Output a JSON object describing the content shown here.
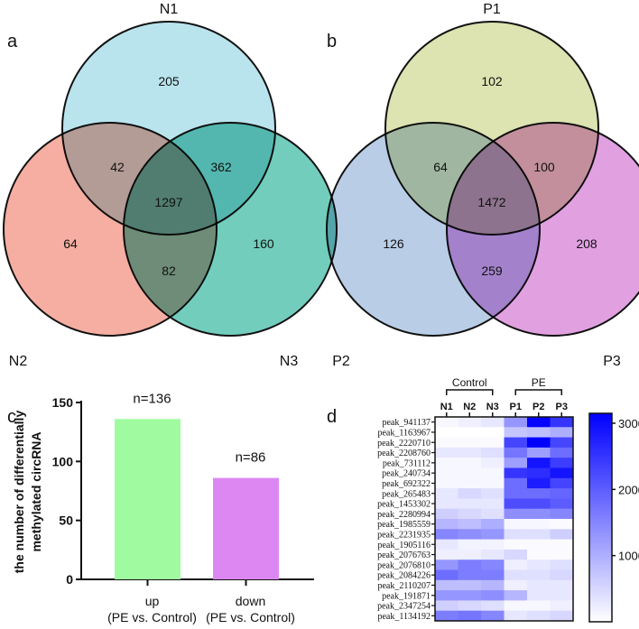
{
  "panel_labels": [
    "a",
    "b",
    "c",
    "d"
  ],
  "chart_data": [
    {
      "type": "venn",
      "panel": "a",
      "sets": [
        {
          "name": "N1",
          "color": "#a9dde9"
        },
        {
          "name": "N2",
          "color": "#f29a8a"
        },
        {
          "name": "N3",
          "color": "#4fc1ad"
        }
      ],
      "regions": {
        "N1_only": "205",
        "N2_only": "64",
        "N3_only": "160",
        "N1_N2": "42",
        "N1_N3": "362",
        "N2_N3": "82",
        "all": "1297"
      }
    },
    {
      "type": "venn",
      "panel": "b",
      "sets": [
        {
          "name": "P1",
          "color": "#d5dc9d"
        },
        {
          "name": "P2",
          "color": "#a8c0e0"
        },
        {
          "name": "P3",
          "color": "#d98ad9"
        }
      ],
      "regions": {
        "P1_only": "102",
        "P2_only": "126",
        "P3_only": "208",
        "P1_P2": "64",
        "P1_P3": "100",
        "P2_P3": "259",
        "all": "1472"
      }
    },
    {
      "type": "bar",
      "panel": "c",
      "ylabel": [
        "the number of differentially",
        "methylated circRNA"
      ],
      "ylim": [
        0,
        150
      ],
      "yticks": [
        "0",
        "50",
        "100",
        "150"
      ],
      "categories": [
        [
          "up",
          "(PE vs. Control)"
        ],
        [
          "down",
          "(PE vs. Control)"
        ]
      ],
      "values": [
        136,
        86
      ],
      "labels": [
        "n=136",
        "n=86"
      ],
      "colors": [
        "#a0fba0",
        "#dd88f2"
      ]
    },
    {
      "type": "heatmap",
      "panel": "d",
      "groups": [
        "Control",
        "PE"
      ],
      "columns": [
        "N1",
        "N2",
        "N3",
        "P1",
        "P2",
        "P3"
      ],
      "rows": [
        "peak_941137",
        "peak_1163967",
        "peak_2220710",
        "peak_2208760",
        "peak_731112",
        "peak_240734",
        "peak_692322",
        "peak_265483",
        "peak_1453302",
        "peak_2280994",
        "peak_1985559",
        "peak_2231935",
        "peak_1905116",
        "peak_2076763",
        "peak_2076810",
        "peak_2084226",
        "peak_2110207",
        "peak_191871",
        "peak_2347254",
        "peak_1134192"
      ],
      "values": [
        [
          100,
          200,
          300,
          1300,
          3100,
          2500
        ],
        [
          0,
          0,
          0,
          700,
          800,
          1000
        ],
        [
          50,
          50,
          50,
          2300,
          3150,
          2300
        ],
        [
          300,
          300,
          400,
          1700,
          1200,
          1800
        ],
        [
          100,
          100,
          200,
          1200,
          2900,
          2400
        ],
        [
          100,
          100,
          100,
          2500,
          2600,
          2900
        ],
        [
          100,
          100,
          100,
          1800,
          2800,
          2300
        ],
        [
          300,
          500,
          400,
          1800,
          1800,
          1900
        ],
        [
          300,
          300,
          300,
          2200,
          2200,
          2000
        ],
        [
          600,
          500,
          400,
          1400,
          1400,
          1500
        ],
        [
          900,
          800,
          1000,
          100,
          100,
          50
        ],
        [
          1500,
          1400,
          1300,
          400,
          400,
          600
        ],
        [
          300,
          150,
          150,
          50,
          50,
          50
        ],
        [
          200,
          200,
          300,
          500,
          50,
          50
        ],
        [
          1300,
          1600,
          1500,
          200,
          300,
          400
        ],
        [
          1800,
          1600,
          1600,
          400,
          400,
          500
        ],
        [
          800,
          800,
          900,
          200,
          300,
          300
        ],
        [
          1300,
          1300,
          1400,
          900,
          300,
          300
        ],
        [
          600,
          500,
          400,
          100,
          100,
          200
        ],
        [
          1600,
          1700,
          1500,
          300,
          400,
          500
        ]
      ],
      "color_range": [
        0,
        3150
      ],
      "colorbar_ticks": [
        "1000",
        "2000",
        "3000"
      ],
      "color_low": "#ffffff",
      "color_high": "#0000ff"
    }
  ]
}
